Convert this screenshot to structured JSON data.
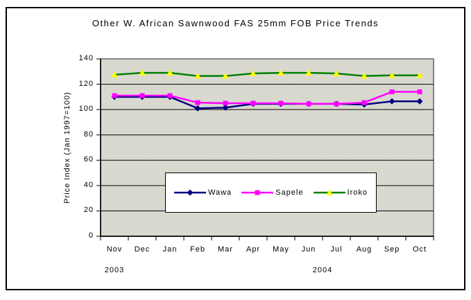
{
  "chart_data": {
    "type": "line",
    "title": "Other W. African Sawnwood FAS 25mm FOB Price Trends",
    "ylabel": "Price Index (Jan 1997=100)",
    "xlabel": "",
    "categories": [
      "Nov",
      "Dec",
      "Jan",
      "Feb",
      "Mar",
      "Apr",
      "May",
      "Jun",
      "Jul",
      "Aug",
      "Sep",
      "Oct"
    ],
    "year_labels": [
      {
        "label": "2003",
        "position_index": 0
      },
      {
        "label": "2004",
        "position_index": 7.5
      }
    ],
    "ylim": [
      0,
      140
    ],
    "ytick_step": 20,
    "grid": true,
    "legend_position": "inside-center-bottom",
    "series": [
      {
        "name": "Wawa",
        "color": "#000080",
        "marker": "diamond",
        "marker_color": "#000080",
        "values": [
          110,
          110,
          110,
          101,
          101.5,
          104.5,
          104.5,
          104.5,
          104.5,
          104,
          106.5,
          106.5
        ]
      },
      {
        "name": "Sapele",
        "color": "#FF00FF",
        "marker": "square",
        "marker_color": "#FF00FF",
        "values": [
          111,
          111,
          111,
          105.5,
          105,
          105,
          105,
          104.5,
          104.5,
          105.5,
          114,
          114
        ]
      },
      {
        "name": "Iroko",
        "color": "#008000",
        "marker": "triangle",
        "marker_color": "#FFFF00",
        "values": [
          127.5,
          129,
          129,
          126.5,
          126.5,
          128.5,
          129,
          129,
          128.5,
          126.5,
          127,
          127
        ]
      }
    ],
    "colors": {
      "plot_bg_light": "#E8E8E0",
      "plot_bg_dark": "#C9C9BF",
      "plot_border": "#848484",
      "axis": "#000000",
      "gridline": "#000000",
      "legend_bg": "#FFFFFF",
      "outer_border": "#000000"
    }
  }
}
